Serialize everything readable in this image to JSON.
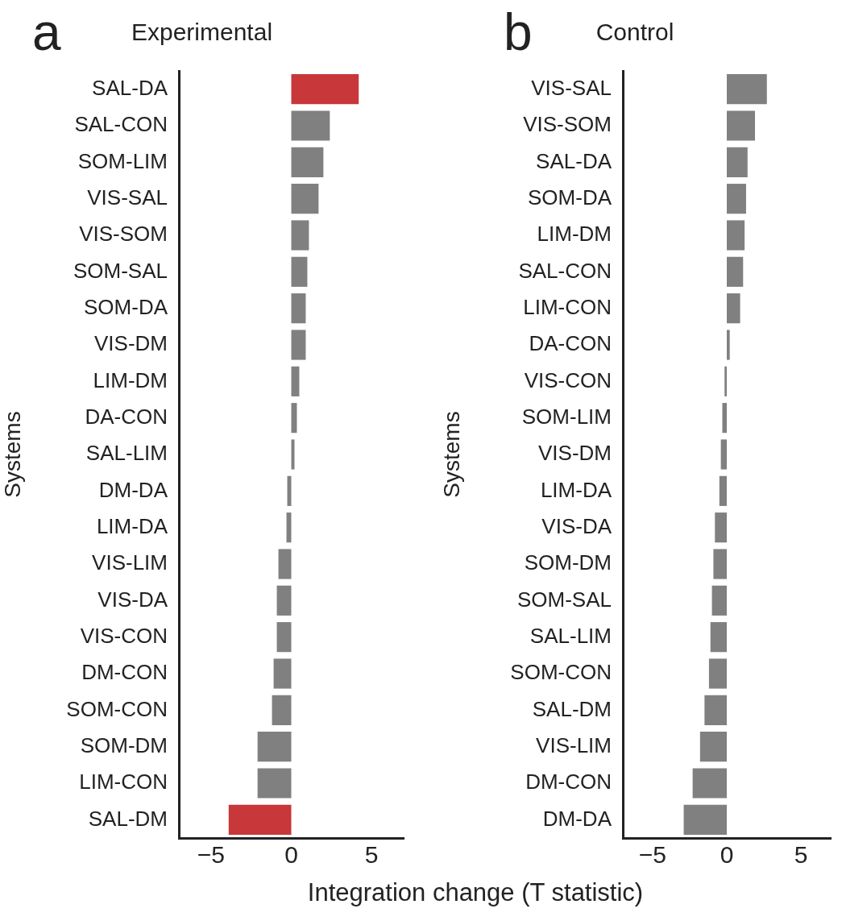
{
  "chart_data": [
    {
      "type": "bar",
      "orientation": "horizontal",
      "title": "Experimental",
      "ylabel": "Systems",
      "xlabel": "Integration change (T statistic)",
      "annotations": [
        "a"
      ],
      "categories": [
        "SAL-DA",
        "SAL-CON",
        "SOM-LIM",
        "VIS-SAL",
        "VIS-SOM",
        "SOM-SAL",
        "SOM-DA",
        "VIS-DM",
        "LIM-DM",
        "DA-CON",
        "SAL-LIM",
        "DM-DA",
        "LIM-DA",
        "VIS-LIM",
        "VIS-DA",
        "VIS-CON",
        "DM-CON",
        "SOM-CON",
        "SOM-DM",
        "LIM-CON",
        "SAL-DM"
      ],
      "values": [
        4.2,
        2.4,
        2.0,
        1.7,
        1.1,
        1.0,
        0.9,
        0.9,
        0.5,
        0.35,
        0.2,
        -0.25,
        -0.3,
        -0.8,
        -0.9,
        -0.9,
        -1.1,
        -1.2,
        -2.1,
        -2.1,
        -3.9
      ],
      "colors": [
        "#c8373a",
        "#808080",
        "#808080",
        "#808080",
        "#808080",
        "#808080",
        "#808080",
        "#808080",
        "#808080",
        "#808080",
        "#808080",
        "#808080",
        "#808080",
        "#808080",
        "#808080",
        "#808080",
        "#808080",
        "#808080",
        "#808080",
        "#808080",
        "#c8373a"
      ],
      "xlim": [
        -7,
        7
      ],
      "xticks": [
        {
          "value": -5,
          "label": "−5"
        },
        {
          "value": 0,
          "label": "0"
        },
        {
          "value": 5,
          "label": "5"
        }
      ]
    },
    {
      "type": "bar",
      "orientation": "horizontal",
      "title": "Control",
      "ylabel": "Systems",
      "annotations": [
        "b"
      ],
      "categories": [
        "VIS-SAL",
        "VIS-SOM",
        "SAL-DA",
        "SOM-DA",
        "LIM-DM",
        "SAL-CON",
        "LIM-CON",
        "DA-CON",
        "VIS-CON",
        "SOM-LIM",
        "VIS-DM",
        "LIM-DA",
        "VIS-DA",
        "SOM-DM",
        "SOM-SAL",
        "SAL-LIM",
        "SOM-CON",
        "SAL-DM",
        "VIS-LIM",
        "DM-CON",
        "DM-DA"
      ],
      "values": [
        2.7,
        1.9,
        1.4,
        1.3,
        1.2,
        1.1,
        0.9,
        0.2,
        -0.15,
        -0.3,
        -0.4,
        -0.5,
        -0.8,
        -0.9,
        -1.0,
        -1.1,
        -1.2,
        -1.5,
        -1.8,
        -2.3,
        -2.9
      ],
      "colors": [
        "#808080",
        "#808080",
        "#808080",
        "#808080",
        "#808080",
        "#808080",
        "#808080",
        "#808080",
        "#808080",
        "#808080",
        "#808080",
        "#808080",
        "#808080",
        "#808080",
        "#808080",
        "#808080",
        "#808080",
        "#808080",
        "#808080",
        "#808080",
        "#808080"
      ],
      "xlim": [
        -7,
        7
      ],
      "xticks": [
        {
          "value": -5,
          "label": "−5"
        },
        {
          "value": 0,
          "label": "0"
        },
        {
          "value": 5,
          "label": "5"
        }
      ]
    }
  ]
}
